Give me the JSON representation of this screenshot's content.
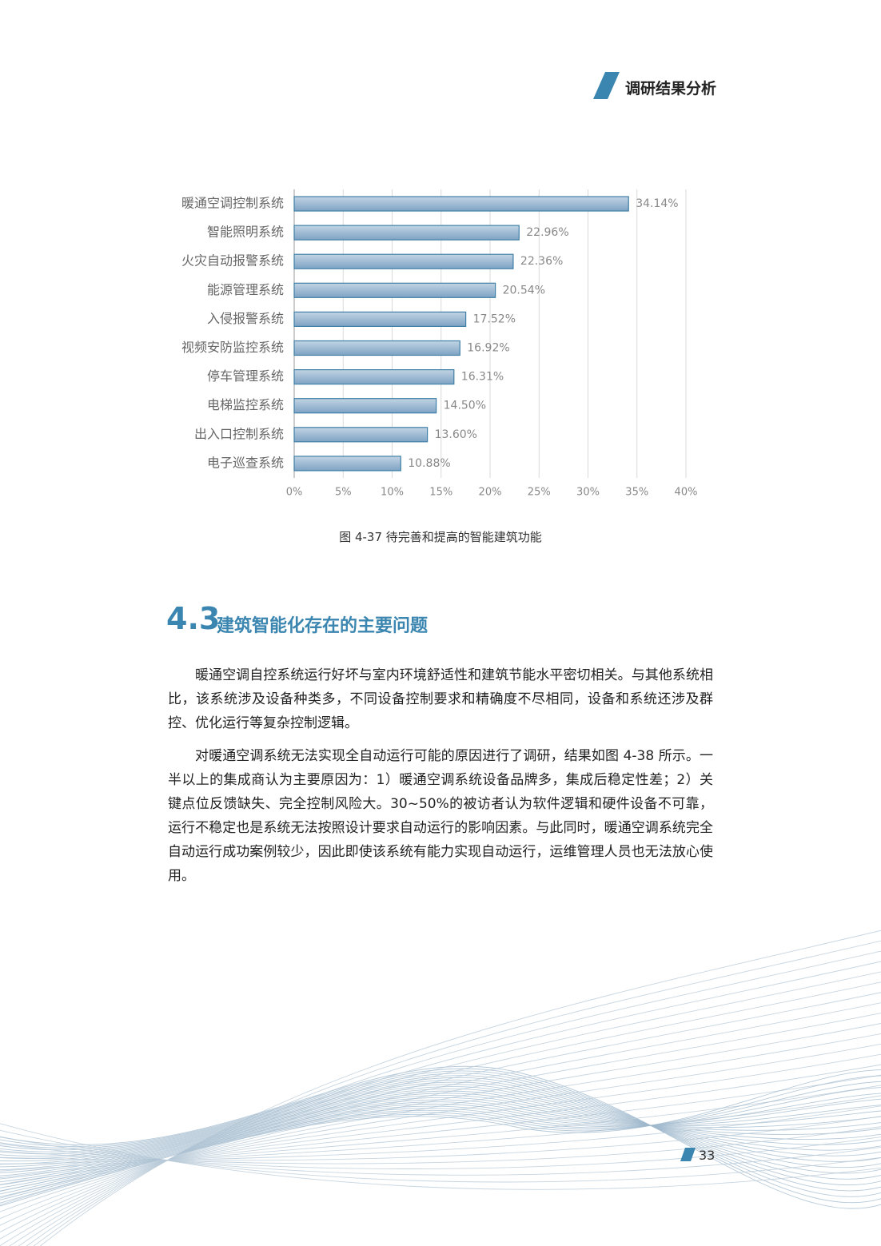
{
  "header": {
    "title": "调研结果分析"
  },
  "chart_data": {
    "type": "bar",
    "orientation": "horizontal",
    "categories": [
      "暖通空调控制系统",
      "智能照明系统",
      "火灾自动报警系统",
      "能源管理系统",
      "入侵报警系统",
      "视频安防监控系统",
      "停车管理系统",
      "电梯监控系统",
      "出入口控制系统",
      "电子巡查系统"
    ],
    "values": [
      34.14,
      22.96,
      22.36,
      20.54,
      17.52,
      16.92,
      16.31,
      14.5,
      13.6,
      10.88
    ],
    "value_labels": [
      "34.14%",
      "22.96%",
      "22.36%",
      "20.54%",
      "17.52%",
      "16.92%",
      "16.31%",
      "14.50%",
      "13.60%",
      "10.88%"
    ],
    "color": "#8eaecb",
    "xlim": [
      0,
      40
    ],
    "xticks": [
      {
        "value": 0,
        "label": "0%"
      },
      {
        "value": 5,
        "label": "5%"
      },
      {
        "value": 10,
        "label": "10%"
      },
      {
        "value": 15,
        "label": "15%"
      },
      {
        "value": 20,
        "label": "20%"
      },
      {
        "value": 25,
        "label": "25%"
      },
      {
        "value": 30,
        "label": "30%"
      },
      {
        "value": 35,
        "label": "35%"
      },
      {
        "value": 40,
        "label": "40%"
      }
    ],
    "grid": true
  },
  "caption": "图 4-37 待完善和提高的智能建筑功能",
  "section": {
    "number": "4.3",
    "title": "建筑智能化存在的主要问题"
  },
  "paragraphs": [
    "暖通空调自控系统运行好坏与室内环境舒适性和建筑节能水平密切相关。与其他系统相比，该系统涉及设备种类多，不同设备控制要求和精确度不尽相同，设备和系统还涉及群控、优化运行等复杂控制逻辑。",
    "对暖通空调系统无法实现全自动运行可能的原因进行了调研，结果如图 4-38 所示。一半以上的集成商认为主要原因为：1）暖通空调系统设备品牌多，集成后稳定性差；2）关键点位反馈缺失、完全控制风险大。30~50%的被访者认为软件逻辑和硬件设备不可靠，运行不稳定也是系统无法按照设计要求自动运行的影响因素。与此同时，暖通空调系统完全自动运行成功案例较少，因此即使该系统有能力实现自动运行，运维管理人员也无法放心使用。"
  ],
  "page_number": "33"
}
